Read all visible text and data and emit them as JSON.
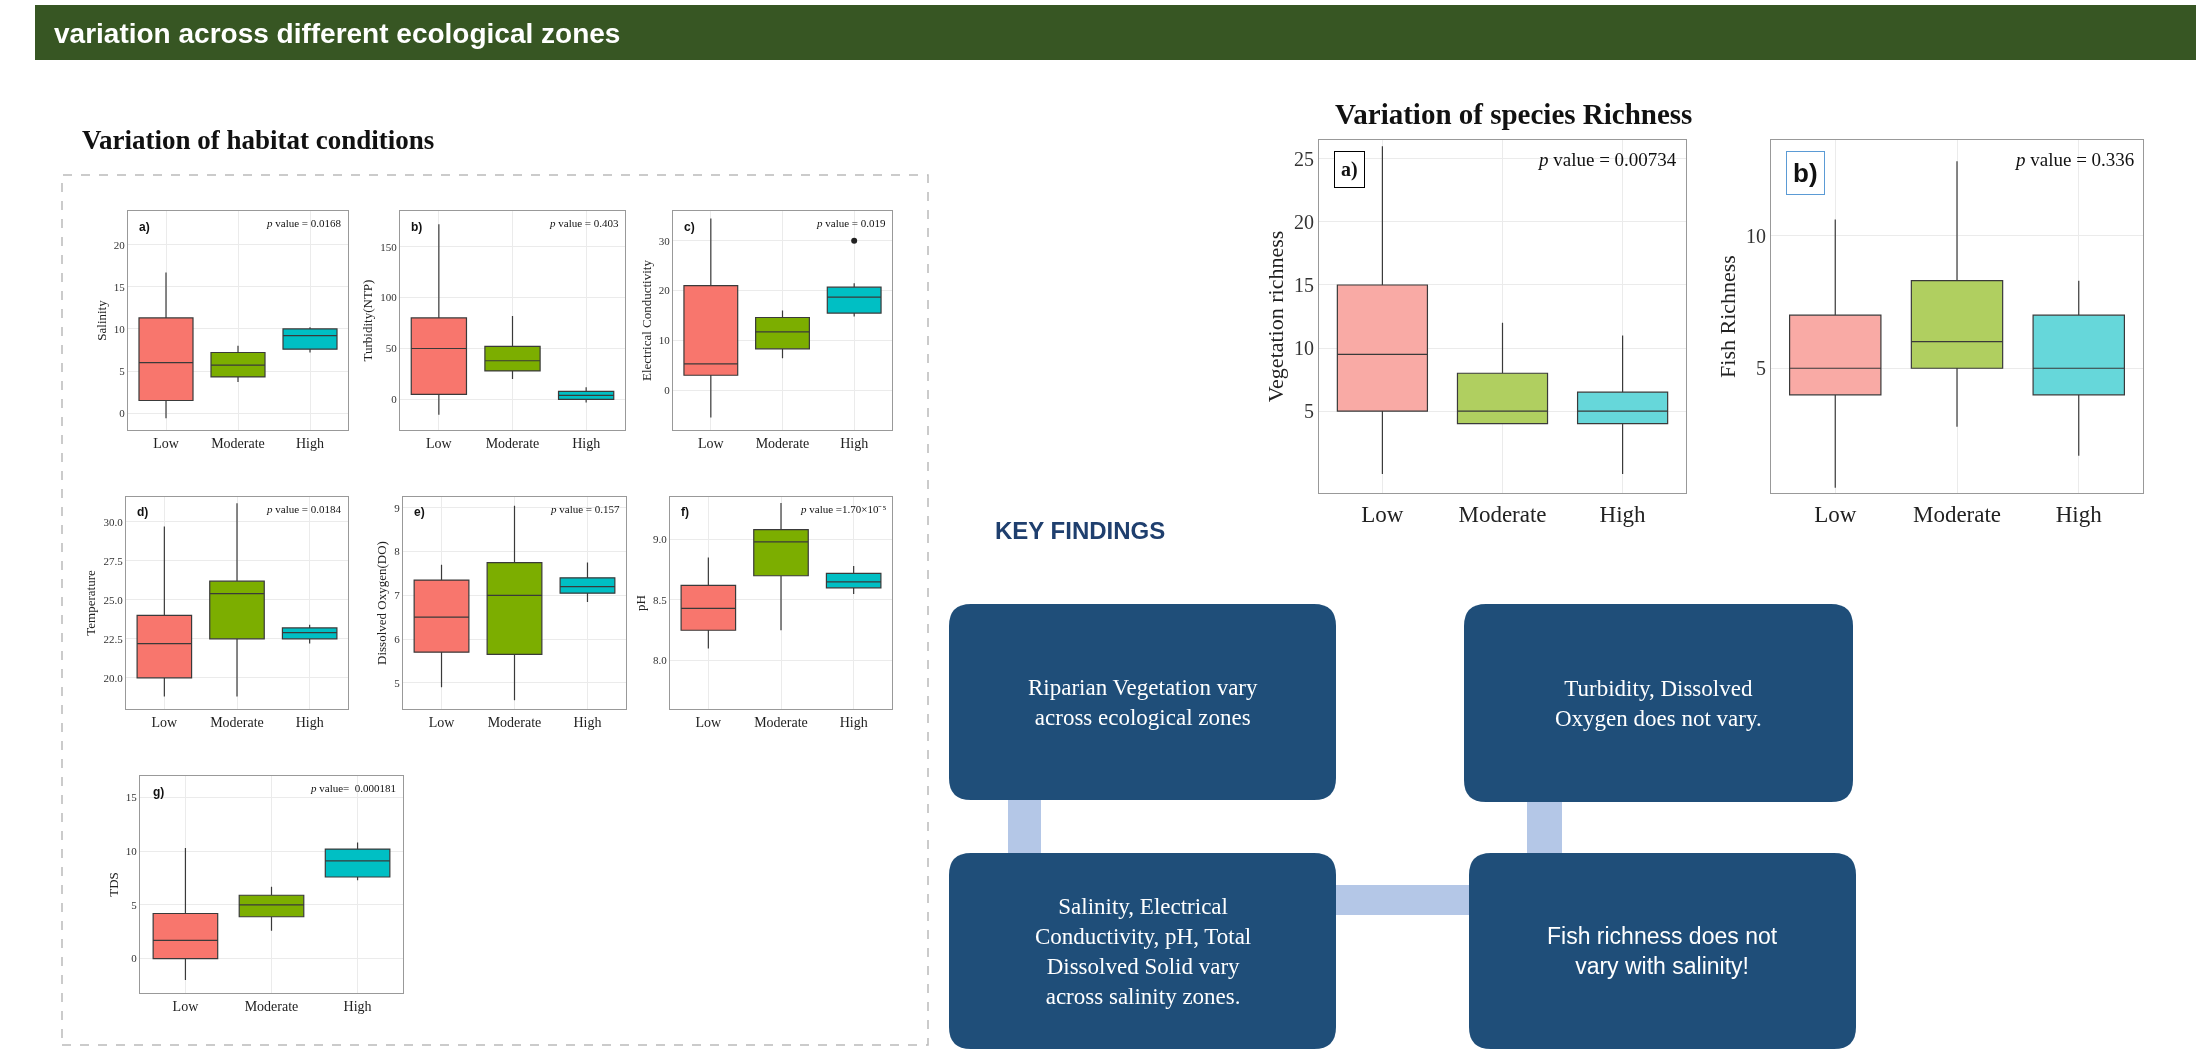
{
  "chart_data": [
    {
      "type": "other",
      "title": "variation across different ecological zones",
      "annotations": [
        "Variation of habitat conditions",
        "Variation of species Richness"
      ]
    },
    {
      "type": "box",
      "title": "a)",
      "ylabel": "Salinity",
      "categories": [
        "Low",
        "Moderate",
        "High"
      ],
      "colors": [
        "#f8766d",
        "#7cae00",
        "#00bfc4"
      ],
      "grid": true,
      "ylim": [
        -2,
        24
      ],
      "yticks": [
        0,
        5,
        10,
        15,
        20
      ],
      "annotations": [
        "p value = 0.0168"
      ],
      "boxes": [
        {
          "low": -0.6,
          "q1": 1.5,
          "median": 6,
          "q3": 11.3,
          "high": 16.7
        },
        {
          "low": 3.7,
          "q1": 4.3,
          "median": 5.7,
          "q3": 7.2,
          "high": 8
        },
        {
          "low": 7.2,
          "q1": 7.6,
          "median": 9.2,
          "q3": 10,
          "high": 10.2
        }
      ]
    },
    {
      "type": "box",
      "title": "b)",
      "ylabel": "Turbidity(NTP)",
      "categories": [
        "Low",
        "Moderate",
        "High"
      ],
      "colors": [
        "#f8766d",
        "#7cae00",
        "#00bfc4"
      ],
      "grid": true,
      "ylim": [
        -30,
        185
      ],
      "yticks": [
        0,
        50,
        100,
        150
      ],
      "annotations": [
        "p value = 0.403"
      ],
      "boxes": [
        {
          "low": -15,
          "q1": 5,
          "median": 50,
          "q3": 80,
          "high": 172
        },
        {
          "low": 20,
          "q1": 28,
          "median": 38,
          "q3": 52,
          "high": 82
        },
        {
          "low": -3,
          "q1": 0,
          "median": 4,
          "q3": 8,
          "high": 12
        }
      ]
    },
    {
      "type": "box",
      "title": "c)",
      "ylabel": "Electrical Conductivity",
      "categories": [
        "Low",
        "Moderate",
        "High"
      ],
      "colors": [
        "#f8766d",
        "#7cae00",
        "#00bfc4"
      ],
      "grid": true,
      "ylim": [
        -8,
        36
      ],
      "yticks": [
        0,
        10,
        20,
        30
      ],
      "annotations": [
        "p value = 0.019"
      ],
      "boxes": [
        {
          "low": -5.5,
          "q1": 3,
          "median": 5.3,
          "q3": 21,
          "high": 34.5
        },
        {
          "low": 6.4,
          "q1": 8.3,
          "median": 11.7,
          "q3": 14.6,
          "high": 16
        },
        {
          "low": 14.8,
          "q1": 15.5,
          "median": 18.7,
          "q3": 20.7,
          "high": 21.5,
          "outliers": [
            30
          ]
        }
      ]
    },
    {
      "type": "box",
      "title": "d)",
      "ylabel": "Temperature",
      "categories": [
        "Low",
        "Moderate",
        "High"
      ],
      "colors": [
        "#f8766d",
        "#7cae00",
        "#00bfc4"
      ],
      "grid": true,
      "ylim": [
        18,
        31.6
      ],
      "yticks": [
        {
          "value": 20,
          "label": "20.0"
        },
        22.5,
        {
          "value": 25,
          "label": "25.0"
        },
        27.5,
        {
          "value": 30,
          "label": "30.0"
        }
      ],
      "annotations": [
        "p value = 0.0184"
      ],
      "boxes": [
        {
          "low": 18.8,
          "q1": 20,
          "median": 22.2,
          "q3": 24,
          "high": 29.7
        },
        {
          "low": 18.8,
          "q1": 22.5,
          "median": 25.4,
          "q3": 26.2,
          "high": 31.2
        },
        {
          "low": 22.2,
          "q1": 22.5,
          "median": 22.9,
          "q3": 23.2,
          "high": 23.4
        }
      ]
    },
    {
      "type": "box",
      "title": "e)",
      "ylabel": "Dissolved Oxygen(DO)",
      "categories": [
        "Low",
        "Moderate",
        "High"
      ],
      "colors": [
        "#f8766d",
        "#7cae00",
        "#00bfc4"
      ],
      "grid": true,
      "ylim": [
        4.4,
        9.25
      ],
      "yticks": [
        5,
        6,
        7,
        8,
        9
      ],
      "annotations": [
        "p value = 0.157"
      ],
      "boxes": [
        {
          "low": 4.9,
          "q1": 5.7,
          "median": 6.5,
          "q3": 7.35,
          "high": 7.7
        },
        {
          "low": 4.6,
          "q1": 5.65,
          "median": 7,
          "q3": 7.75,
          "high": 9.05
        },
        {
          "low": 6.85,
          "q1": 7.05,
          "median": 7.2,
          "q3": 7.4,
          "high": 7.75
        }
      ]
    },
    {
      "type": "box",
      "title": "f)",
      "ylabel": "pH",
      "categories": [
        "Low",
        "Moderate",
        "High"
      ],
      "colors": [
        "#f8766d",
        "#7cae00",
        "#00bfc4"
      ],
      "grid": true,
      "ylim": [
        7.6,
        9.35
      ],
      "yticks": [
        {
          "value": 8,
          "label": "8.0"
        },
        8.5,
        {
          "value": 9,
          "label": "9.0"
        }
      ],
      "annotations": [
        "p value =1.70×10⁻⁵"
      ],
      "boxes": [
        {
          "low": 8.1,
          "q1": 8.25,
          "median": 8.43,
          "q3": 8.62,
          "high": 8.85
        },
        {
          "low": 8.25,
          "q1": 8.7,
          "median": 8.98,
          "q3": 9.08,
          "high": 9.3
        },
        {
          "low": 8.55,
          "q1": 8.6,
          "median": 8.65,
          "q3": 8.72,
          "high": 8.78
        }
      ]
    },
    {
      "type": "box",
      "title": "g)",
      "ylabel": "TDS",
      "categories": [
        "Low",
        "Moderate",
        "High"
      ],
      "colors": [
        "#f8766d",
        "#7cae00",
        "#00bfc4"
      ],
      "grid": true,
      "ylim": [
        -3.2,
        17
      ],
      "yticks": [
        0,
        5,
        10,
        15
      ],
      "annotations": [
        "p value=  0.000181"
      ],
      "boxes": [
        {
          "low": -2,
          "q1": 0,
          "median": 1.7,
          "q3": 4.2,
          "high": 10.3
        },
        {
          "low": 2.6,
          "q1": 3.9,
          "median": 5,
          "q3": 5.9,
          "high": 6.7
        },
        {
          "low": 7.3,
          "q1": 7.6,
          "median": 9.1,
          "q3": 10.2,
          "high": 10.8
        }
      ]
    },
    {
      "type": "box",
      "title": "a)",
      "ylabel": "Vegetation richness",
      "categories": [
        "Low",
        "Moderate",
        "High"
      ],
      "colors": [
        "#f9aaa5",
        "#b0cf60",
        "#66d7da"
      ],
      "grid": true,
      "ylim": [
        -1.5,
        26.5
      ],
      "yticks": [
        5,
        10,
        15,
        20,
        25
      ],
      "annotations": [
        "p value = 0.00734"
      ],
      "boxes": [
        {
          "low": 0,
          "q1": 5,
          "median": 9.5,
          "q3": 15,
          "high": 26
        },
        {
          "low": 4,
          "q1": 4,
          "median": 5,
          "q3": 8,
          "high": 12
        },
        {
          "low": 0,
          "q1": 4,
          "median": 5,
          "q3": 6.5,
          "high": 11
        }
      ]
    },
    {
      "type": "box",
      "title": "b)",
      "ylabel": "Fish Richness",
      "categories": [
        "Low",
        "Moderate",
        "High"
      ],
      "colors": [
        "#f9aaa5",
        "#b0cf60",
        "#66d7da"
      ],
      "grid": true,
      "ylim": [
        0.3,
        13.6
      ],
      "yticks": [
        5,
        10
      ],
      "annotations": [
        "p value = 0.336"
      ],
      "boxes": [
        {
          "low": 0.5,
          "q1": 4,
          "median": 5,
          "q3": 7,
          "high": 10.6
        },
        {
          "low": 2.8,
          "q1": 5,
          "median": 6,
          "q3": 8.3,
          "high": 12.8
        },
        {
          "low": 1.7,
          "q1": 4,
          "median": 5,
          "q3": 7,
          "high": 8.3
        }
      ]
    },
    {
      "type": "other",
      "title": "KEY FINDINGS",
      "annotations": [
        "Riparian Vegetation vary across ecological zones",
        "Turbidity, Dissolved Oxygen does not vary.",
        "Salinity, Electrical Conductivity, pH, Total Dissolved Solid vary across salinity zones.",
        "Fish richness does not vary with salinity!"
      ]
    }
  ]
}
